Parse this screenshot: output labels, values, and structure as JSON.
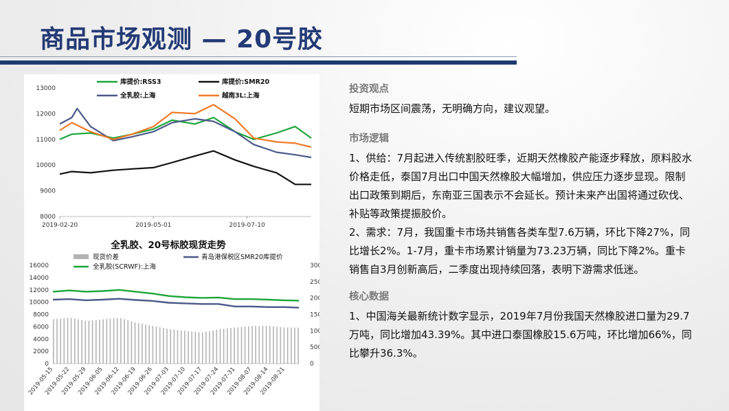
{
  "title": "商品市场观测 — 20号胶",
  "colors": {
    "title": "#233a75",
    "green": "#1aa638",
    "black": "#111111",
    "navy": "#4b5889",
    "orange": "#ef7a27",
    "gray_bar": "#b3b3b3"
  },
  "right": {
    "s1_heading": "投资观点",
    "s1_text": "短期市场区间震荡，无明确方向，建议观望。",
    "s2_heading": "市场逻辑",
    "s2_p1": "1、供给：7月起进入传统割胶旺季，近期天然橡胶产能逐步释放，原料胶水价格走低，泰国7月出口中国天然橡胶大幅增加，供应压力逐步显现。限制出口政策到期后，东南亚三国表示不会延长。预计未来产出国将通过砍伐、补贴等政策提振胶价。",
    "s2_p2": "2、需求：7月，我国重卡市场共销售各类车型7.6万辆，环比下降27%，同比增长2%。1-7月，重卡市场累计销量为73.23万辆，同比下降2%。重卡销售自3月创新高后，二季度出现持续回落，表明下游需求低迷。",
    "s3_heading": "核心数据",
    "s3_p1": "1、中国海关最新统计数字显示，2019年7月份我国天然橡胶进口量为29.7万吨，同比增加43.39%。其中进口泰国橡胶15.6万吨，环比增加66%，同比攀升36.3%。"
  },
  "chart_data": [
    {
      "type": "line",
      "title": "",
      "ylim": [
        8000,
        13000
      ],
      "yticks": [
        "8000",
        "9000",
        "10000",
        "11000",
        "12000",
        "13000"
      ],
      "xticks": [
        "2019-02-20",
        "2019-05-01",
        "2019-07-10"
      ],
      "x_range": [
        "2019-02-20",
        "2019-08-27"
      ],
      "legend": "top",
      "series": [
        {
          "name": "库提价:RSS3",
          "color": "#1aa638",
          "x": [
            "2019-02-20",
            "2019-03-01",
            "2019-03-15",
            "2019-04-01",
            "2019-04-15",
            "2019-05-01",
            "2019-05-15",
            "2019-06-01",
            "2019-06-15",
            "2019-07-01",
            "2019-07-15",
            "2019-08-01",
            "2019-08-15",
            "2019-08-27"
          ],
          "values": [
            11000,
            11200,
            11250,
            11050,
            11200,
            11400,
            11750,
            11600,
            11850,
            11300,
            11000,
            11250,
            11500,
            11050
          ]
        },
        {
          "name": "库提价:SMR20",
          "color": "#111111",
          "x": [
            "2019-02-20",
            "2019-03-01",
            "2019-03-15",
            "2019-04-01",
            "2019-04-15",
            "2019-05-01",
            "2019-05-15",
            "2019-06-01",
            "2019-06-15",
            "2019-07-01",
            "2019-07-15",
            "2019-08-01",
            "2019-08-15",
            "2019-08-27"
          ],
          "values": [
            9650,
            9750,
            9700,
            9800,
            9850,
            9900,
            10100,
            10350,
            10550,
            10200,
            9950,
            9700,
            9250,
            9250
          ]
        },
        {
          "name": "全乳胶:上海",
          "color": "#4b5889",
          "x": [
            "2019-02-20",
            "2019-03-01",
            "2019-03-05",
            "2019-03-15",
            "2019-04-01",
            "2019-04-15",
            "2019-05-01",
            "2019-05-15",
            "2019-06-01",
            "2019-06-15",
            "2019-07-01",
            "2019-07-15",
            "2019-08-01",
            "2019-08-15",
            "2019-08-27"
          ],
          "values": [
            11600,
            11850,
            12200,
            11500,
            10950,
            11100,
            11300,
            11650,
            11800,
            11700,
            11300,
            10800,
            10500,
            10400,
            10300
          ]
        },
        {
          "name": "越南3L:上海",
          "color": "#ef7a27",
          "x": [
            "2019-02-20",
            "2019-03-01",
            "2019-03-15",
            "2019-04-01",
            "2019-04-15",
            "2019-05-01",
            "2019-05-15",
            "2019-06-01",
            "2019-06-15",
            "2019-07-01",
            "2019-07-15",
            "2019-08-01",
            "2019-08-15",
            "2019-08-27"
          ],
          "values": [
            11350,
            11650,
            11300,
            11000,
            11200,
            11500,
            12050,
            12000,
            12350,
            11800,
            11050,
            10900,
            10850,
            10700
          ]
        }
      ]
    },
    {
      "type": "line",
      "title": "全乳胶、20号标胶现货走势",
      "ylim": [
        0,
        16000
      ],
      "yticks": [
        "0",
        "2000",
        "4000",
        "6000",
        "8000",
        "10000",
        "12000",
        "14000",
        "16000"
      ],
      "y2lim": [
        0,
        3000
      ],
      "y2ticks": [
        "0",
        "500",
        "1000",
        "1500",
        "2000",
        "2500",
        "3000"
      ],
      "xticks": [
        "2019-05-15",
        "2019-05-22",
        "2019-05-29",
        "2019-06-05",
        "2019-06-12",
        "2019-06-19",
        "2019-06-26",
        "2019-07-03",
        "2019-07-10",
        "2019-07-17",
        "2019-07-24",
        "2019-07-31",
        "2019-08-07",
        "2019-08-14",
        "2019-08-21"
      ],
      "x_range": [
        "2019-05-15",
        "2019-08-27"
      ],
      "legend": "top",
      "series": [
        {
          "name": "现货价差",
          "type": "bar",
          "axis": "right",
          "color": "#b3b3b3",
          "x": [
            "2019-05-15",
            "2019-05-22",
            "2019-05-29",
            "2019-06-05",
            "2019-06-12",
            "2019-06-19",
            "2019-06-26",
            "2019-07-03",
            "2019-07-10",
            "2019-07-17",
            "2019-07-24",
            "2019-07-31",
            "2019-08-07",
            "2019-08-14",
            "2019-08-21",
            "2019-08-27"
          ],
          "values": [
            1350,
            1400,
            1300,
            1350,
            1400,
            1250,
            1150,
            1050,
            1000,
            950,
            1050,
            1100,
            1150,
            1150,
            1100,
            1100
          ]
        },
        {
          "name": "青岛港保税区SMR20库提价",
          "axis": "left",
          "color": "#4b5889",
          "x": [
            "2019-05-15",
            "2019-05-22",
            "2019-05-29",
            "2019-06-05",
            "2019-06-12",
            "2019-06-19",
            "2019-06-26",
            "2019-07-03",
            "2019-07-10",
            "2019-07-17",
            "2019-07-24",
            "2019-07-31",
            "2019-08-07",
            "2019-08-14",
            "2019-08-21",
            "2019-08-27"
          ],
          "values": [
            10400,
            10500,
            10300,
            10400,
            10550,
            10350,
            10200,
            9900,
            9800,
            9700,
            9700,
            9300,
            9300,
            9200,
            9200,
            9100
          ]
        },
        {
          "name": "全乳胶(SCRWF):上海",
          "axis": "left",
          "color": "#1aa638",
          "x": [
            "2019-05-15",
            "2019-05-22",
            "2019-05-29",
            "2019-06-05",
            "2019-06-12",
            "2019-06-19",
            "2019-06-26",
            "2019-07-03",
            "2019-07-10",
            "2019-07-17",
            "2019-07-24",
            "2019-07-31",
            "2019-08-07",
            "2019-08-14",
            "2019-08-21",
            "2019-08-27"
          ],
          "values": [
            11700,
            11900,
            11700,
            11800,
            12000,
            11700,
            11400,
            11000,
            10800,
            10700,
            10750,
            10500,
            10500,
            10400,
            10300,
            10250
          ]
        }
      ]
    }
  ]
}
